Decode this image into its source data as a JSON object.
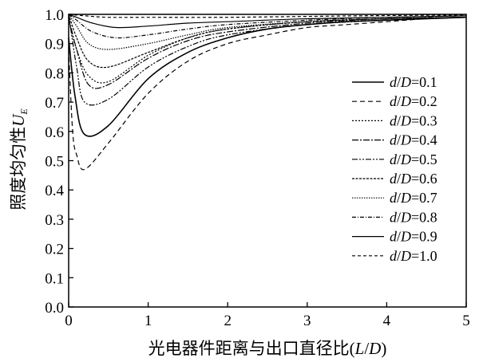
{
  "chart_data": {
    "type": "line",
    "title": "",
    "xlabel": "光电器件距离与出口直径比(L/D)",
    "ylabel": "照度均匀性U_E",
    "ylabel_main": "照度均匀性",
    "ylabel_symbol": "U",
    "ylabel_subscript": "E",
    "xlabel_main": "光电器件距离与出口直径比",
    "xlabel_symbol_open": "(",
    "xlabel_symbol_L": "L",
    "xlabel_symbol_slash": "/",
    "xlabel_symbol_D": "D",
    "xlabel_symbol_close": ")",
    "xlim": [
      0,
      5
    ],
    "ylim": [
      0.0,
      1.0
    ],
    "x_ticks": [
      "0",
      "1",
      "2",
      "3",
      "4",
      "5"
    ],
    "y_ticks": [
      "0.0",
      "0.1",
      "0.2",
      "0.3",
      "0.4",
      "0.5",
      "0.6",
      "0.7",
      "0.8",
      "0.9",
      "1.0"
    ],
    "grid": false,
    "legend_position": "right",
    "series": [
      {
        "name": "d/D=0.1",
        "name_prefix": "d/D=",
        "name_value": "0.1",
        "dash": "",
        "width": 1.6,
        "x": [
          0,
          0.08,
          0.2,
          0.5,
          1.0,
          1.5,
          2.0,
          2.5,
          3.0,
          3.5,
          4.0,
          4.5,
          5.0
        ],
        "y": [
          0.92,
          0.72,
          0.59,
          0.62,
          0.78,
          0.87,
          0.92,
          0.95,
          0.965,
          0.975,
          0.98,
          0.985,
          0.99
        ]
      },
      {
        "name": "d/D=0.2",
        "name_prefix": "d/D=",
        "name_value": "0.2",
        "dash": "6,4",
        "width": 1.2,
        "x": [
          0,
          0.05,
          0.1,
          0.2,
          0.5,
          1.0,
          1.5,
          2.0,
          2.5,
          3.0,
          3.5,
          4.0,
          4.5,
          5.0
        ],
        "y": [
          0.88,
          0.6,
          0.52,
          0.47,
          0.56,
          0.73,
          0.84,
          0.9,
          0.93,
          0.955,
          0.965,
          0.975,
          0.985,
          0.99
        ]
      },
      {
        "name": "d/D=0.3",
        "name_prefix": "d/D=",
        "name_value": "0.3",
        "dash": "2,2",
        "width": 1.2,
        "x": [
          0,
          0.1,
          0.25,
          0.5,
          1.0,
          1.5,
          2.0,
          3.0,
          4.0,
          5.0
        ],
        "y": [
          0.98,
          0.88,
          0.79,
          0.77,
          0.86,
          0.92,
          0.95,
          0.975,
          0.985,
          0.99
        ]
      },
      {
        "name": "d/D=0.4",
        "name_prefix": "d/D=",
        "name_value": "0.4",
        "dash": "8,2,2,2",
        "width": 1.2,
        "x": [
          0,
          0.1,
          0.25,
          0.5,
          1.0,
          1.5,
          2.0,
          3.0,
          4.0,
          5.0
        ],
        "y": [
          0.99,
          0.88,
          0.76,
          0.76,
          0.85,
          0.91,
          0.94,
          0.97,
          0.985,
          0.99
        ]
      },
      {
        "name": "d/D=0.5",
        "name_prefix": "d/D=",
        "name_value": "0.5",
        "dash": "7,2,2,2,2,2",
        "width": 1.2,
        "x": [
          0,
          0.1,
          0.2,
          0.5,
          1.0,
          1.5,
          2.0,
          3.0,
          4.0,
          5.0
        ],
        "y": [
          1.0,
          0.82,
          0.7,
          0.71,
          0.82,
          0.89,
          0.93,
          0.965,
          0.98,
          0.99
        ]
      },
      {
        "name": "d/D=0.6",
        "name_prefix": "d/D=",
        "name_value": "0.6",
        "dash": "3,1.5",
        "width": 1.2,
        "x": [
          0,
          0.1,
          0.25,
          0.5,
          1.0,
          1.5,
          2.0,
          3.0,
          4.0,
          5.0
        ],
        "y": [
          1.0,
          0.92,
          0.84,
          0.82,
          0.87,
          0.92,
          0.95,
          0.975,
          0.985,
          0.99
        ]
      },
      {
        "name": "d/D=0.7",
        "name_prefix": "d/D=",
        "name_value": "0.7",
        "dash": "1.5,1.5",
        "width": 1.2,
        "x": [
          0,
          0.1,
          0.25,
          0.5,
          1.0,
          1.5,
          2.0,
          3.0,
          4.0,
          5.0
        ],
        "y": [
          1.0,
          0.96,
          0.9,
          0.88,
          0.9,
          0.93,
          0.955,
          0.975,
          0.985,
          0.99
        ]
      },
      {
        "name": "d/D=0.8",
        "name_prefix": "d/D=",
        "name_value": "0.8",
        "dash": "5,2,1,2",
        "width": 1.2,
        "x": [
          0,
          0.1,
          0.3,
          0.6,
          1.0,
          1.5,
          2.0,
          3.0,
          4.0,
          5.0
        ],
        "y": [
          1.0,
          0.98,
          0.94,
          0.92,
          0.93,
          0.95,
          0.965,
          0.98,
          0.99,
          0.995
        ]
      },
      {
        "name": "d/D=0.9",
        "name_prefix": "d/D=",
        "name_value": "0.9",
        "dash": "",
        "width": 1.2,
        "x": [
          0,
          0.1,
          0.3,
          0.6,
          1.0,
          1.5,
          2.0,
          3.0,
          4.0,
          5.0
        ],
        "y": [
          1.0,
          0.99,
          0.97,
          0.955,
          0.96,
          0.97,
          0.975,
          0.985,
          0.99,
          0.995
        ]
      },
      {
        "name": "d/D=1.0",
        "name_prefix": "d/D=",
        "name_value": "1.0",
        "dash": "4,3",
        "width": 1.2,
        "x": [
          0,
          0.2,
          0.5,
          1.0,
          2.0,
          3.0,
          4.0,
          5.0
        ],
        "y": [
          1.0,
          0.995,
          0.99,
          0.99,
          0.99,
          0.993,
          0.996,
          0.998
        ]
      }
    ]
  }
}
